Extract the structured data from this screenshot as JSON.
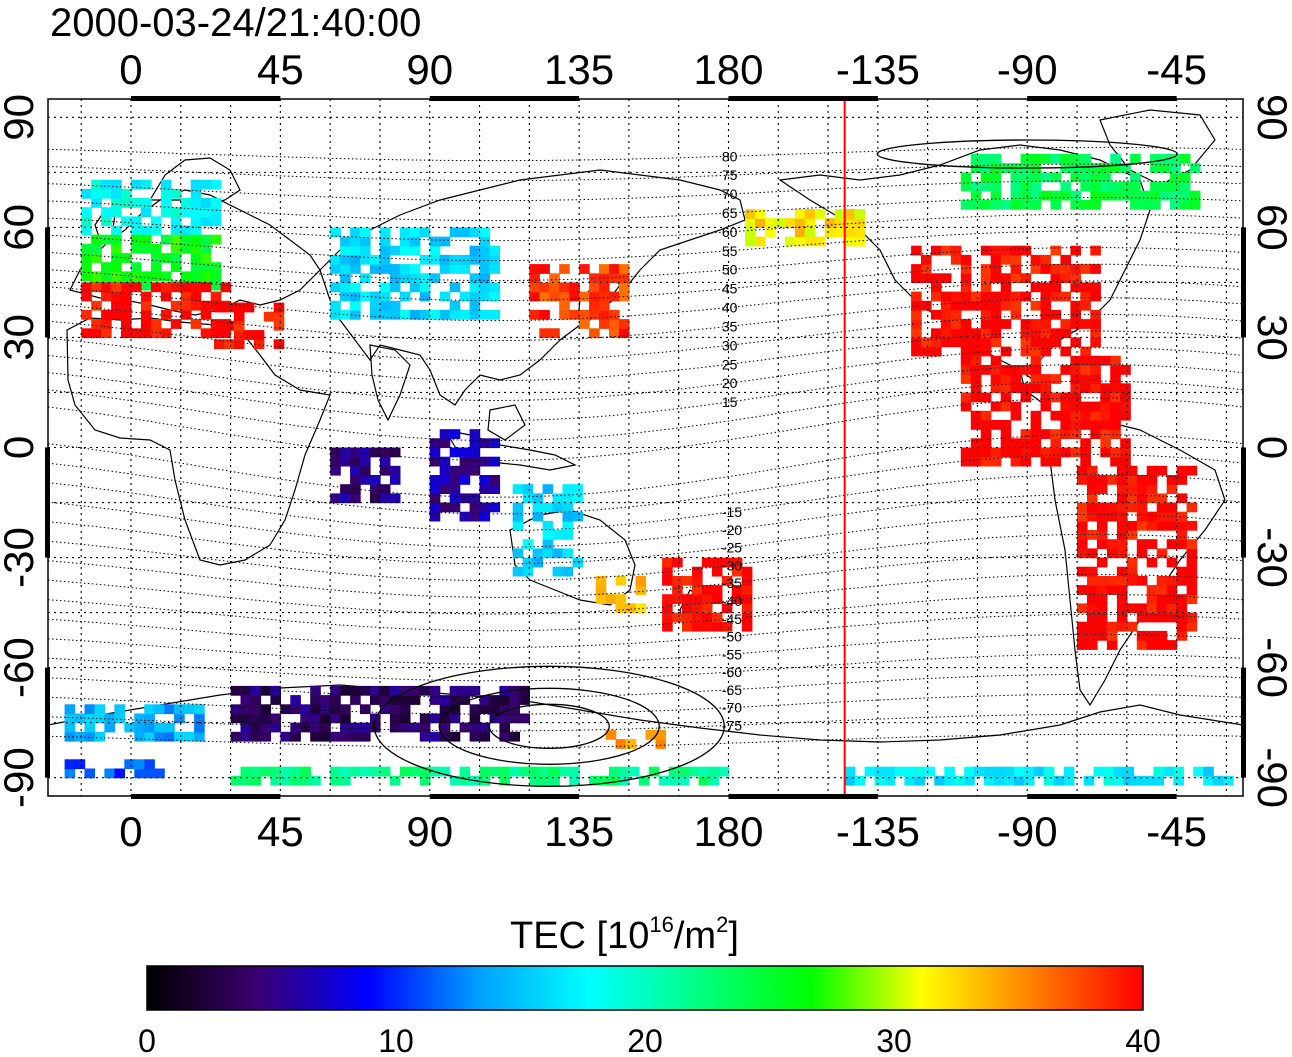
{
  "title": "2000-03-24/21:40:00",
  "map": {
    "projection": "equirectangular",
    "lon_range": [
      -25,
      335
    ],
    "lat_range": [
      -95,
      95
    ],
    "top_lon_labels": [
      "0",
      "45",
      "90",
      "135",
      "180",
      "-135",
      "-90",
      "-45"
    ],
    "bottom_lon_labels": [
      "0",
      "45",
      "90",
      "135",
      "180",
      "-135",
      "-90",
      "-45"
    ],
    "lat_labels": [
      "90",
      "60",
      "30",
      "0",
      "-30",
      "-60",
      "-90"
    ],
    "terminator_lon": -145,
    "terminator_color": "#ff0000",
    "grid": "dotted"
  },
  "magnetic_latitude_labels": {
    "north": [
      "80",
      "75",
      "70",
      "65",
      "60",
      "55",
      "50",
      "45",
      "40",
      "35",
      "30",
      "25",
      "20",
      "15"
    ],
    "south": [
      "-15",
      "-20",
      "-25",
      "-30",
      "-35",
      "-40",
      "-45",
      "-50",
      "-55",
      "-60",
      "-65",
      "-70",
      "-75"
    ]
  },
  "colorbar": {
    "label_main": "TEC  [10",
    "label_sup1": "16",
    "label_mid": "/m",
    "label_sup2": "2",
    "label_end": "]",
    "min": 0,
    "max": 40,
    "tick_labels": [
      "0",
      "10",
      "20",
      "30",
      "40"
    ],
    "colors": [
      "#000000",
      "#3a0070",
      "#0000ff",
      "#00a0ff",
      "#00ffff",
      "#00ff80",
      "#00ff00",
      "#ffff00",
      "#ff8000",
      "#ff0000"
    ]
  },
  "chart_data": {
    "type": "heatmap",
    "title": "2000-03-24/21:40:00",
    "value_label": "TEC [10^16/m^2]",
    "range": [
      0,
      40
    ],
    "regions": [
      {
        "lon": [
          -15,
          25
        ],
        "lat": [
          58,
          72
        ],
        "tec": 18
      },
      {
        "lon": [
          -15,
          25
        ],
        "lat": [
          43,
          58
        ],
        "tec": 26
      },
      {
        "lon": [
          -15,
          30
        ],
        "lat": [
          30,
          43
        ],
        "tec": 40
      },
      {
        "lon": [
          25,
          45
        ],
        "lat": [
          27,
          38
        ],
        "tec": 40
      },
      {
        "lon": [
          60,
          110
        ],
        "lat": [
          35,
          60
        ],
        "tec": 16
      },
      {
        "lon": [
          90,
          110
        ],
        "lat": [
          -20,
          5
        ],
        "tec": 6
      },
      {
        "lon": [
          60,
          80
        ],
        "lat": [
          -15,
          0
        ],
        "tec": 5
      },
      {
        "lon": [
          120,
          150
        ],
        "lat": [
          30,
          48
        ],
        "tec": 38
      },
      {
        "lon": [
          115,
          135
        ],
        "lat": [
          -35,
          -10
        ],
        "tec": 16
      },
      {
        "lon": [
          140,
          155
        ],
        "lat": [
          -45,
          -35
        ],
        "tec": 34
      },
      {
        "lon": [
          160,
          185
        ],
        "lat": [
          -50,
          -30
        ],
        "tec": 40
      },
      {
        "lon": [
          -175,
          -140
        ],
        "lat": [
          55,
          65
        ],
        "tec": 32
      },
      {
        "lon": [
          -125,
          -70
        ],
        "lat": [
          25,
          55
        ],
        "tec": 40
      },
      {
        "lon": [
          -110,
          -60
        ],
        "lat": [
          -5,
          25
        ],
        "tec": 40
      },
      {
        "lon": [
          -75,
          -40
        ],
        "lat": [
          -55,
          -5
        ],
        "tec": 40
      },
      {
        "lon": [
          -110,
          -40
        ],
        "lat": [
          65,
          80
        ],
        "tec": 24
      },
      {
        "lon": [
          30,
          120
        ],
        "lat": [
          -80,
          -65
        ],
        "tec": 4
      },
      {
        "lon": [
          -20,
          20
        ],
        "lat": [
          -80,
          -70
        ],
        "tec": 14
      },
      {
        "lon": [
          -20,
          10
        ],
        "lat": [
          -90,
          -85
        ],
        "tec": 11
      },
      {
        "lon": [
          30,
          180
        ],
        "lat": [
          -92,
          -88
        ],
        "tec": 22
      },
      {
        "lon": [
          -145,
          -30
        ],
        "lat": [
          -92,
          -88
        ],
        "tec": 17
      },
      {
        "lon": [
          140,
          160
        ],
        "lat": [
          -82,
          -78
        ],
        "tec": 34
      }
    ]
  }
}
